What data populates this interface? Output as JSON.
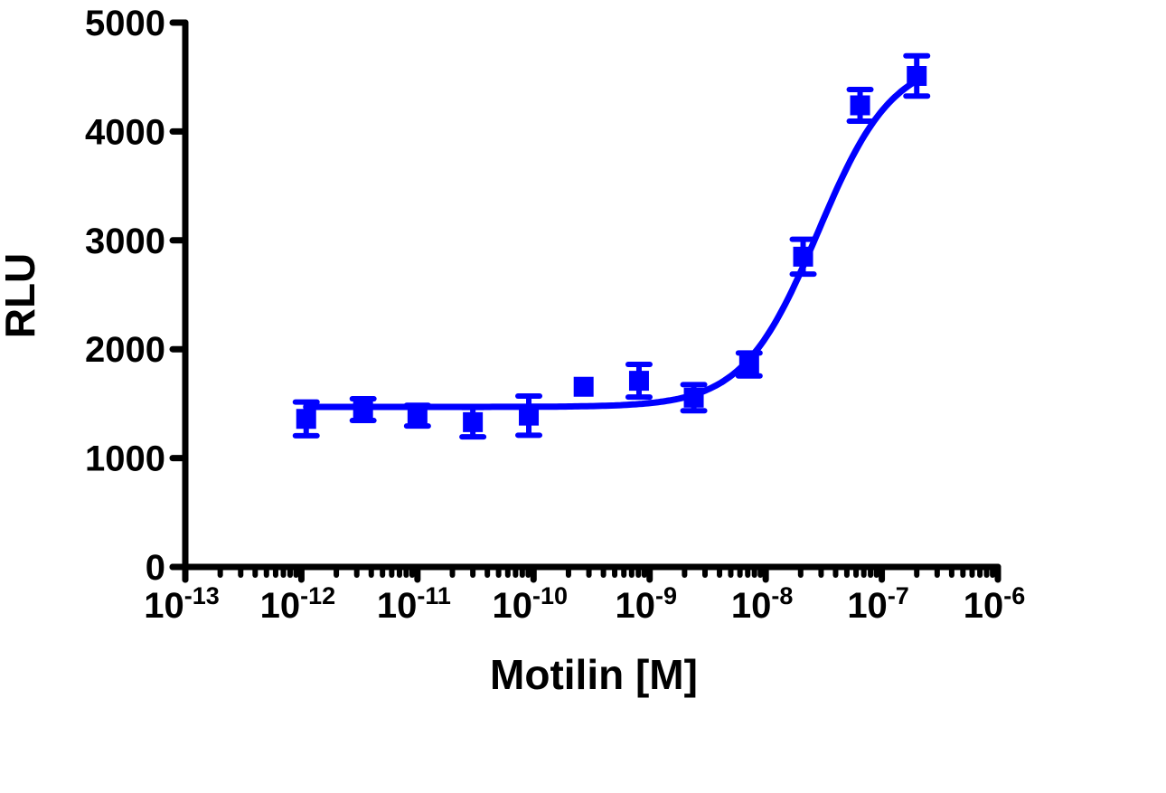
{
  "chart_data": {
    "type": "scatter",
    "title": "",
    "xlabel": "Motilin [M]",
    "ylabel": "RLU",
    "xscale": "log",
    "xlim": [
      1e-13,
      1e-06
    ],
    "ylim": [
      0,
      5000
    ],
    "grid": false,
    "legend": null,
    "x_ticks": [
      {
        "base": "10",
        "exp": "-13"
      },
      {
        "base": "10",
        "exp": "-12"
      },
      {
        "base": "10",
        "exp": "-11"
      },
      {
        "base": "10",
        "exp": "-10"
      },
      {
        "base": "10",
        "exp": "-9"
      },
      {
        "base": "10",
        "exp": "-8"
      },
      {
        "base": "10",
        "exp": "-7"
      },
      {
        "base": "10",
        "exp": "-6"
      }
    ],
    "y_ticks": [
      "0",
      "1000",
      "2000",
      "3000",
      "4000",
      "5000"
    ],
    "series": [
      {
        "name": "Motilin",
        "color": "#0000ff",
        "marker": "square",
        "x": [
          1.1e-12,
          3.4e-12,
          1e-11,
          3e-11,
          9.1e-11,
          2.7e-10,
          8.1e-10,
          2.4e-09,
          7.2e-09,
          2.1e-08,
          6.5e-08,
          2e-07
        ],
        "y": [
          1360,
          1445,
          1390,
          1330,
          1390,
          1655,
          1710,
          1555,
          1860,
          2850,
          4240,
          4510
        ],
        "error": [
          155,
          100,
          95,
          135,
          180,
          0,
          150,
          120,
          105,
          160,
          145,
          185
        ]
      }
    ],
    "fit": {
      "type": "sigmoidal dose-response",
      "bottom": 1470,
      "top": 4680,
      "logEC50": -7.55,
      "hill": 1.35,
      "x_range": [
        1.1e-12,
        2e-07
      ]
    }
  }
}
